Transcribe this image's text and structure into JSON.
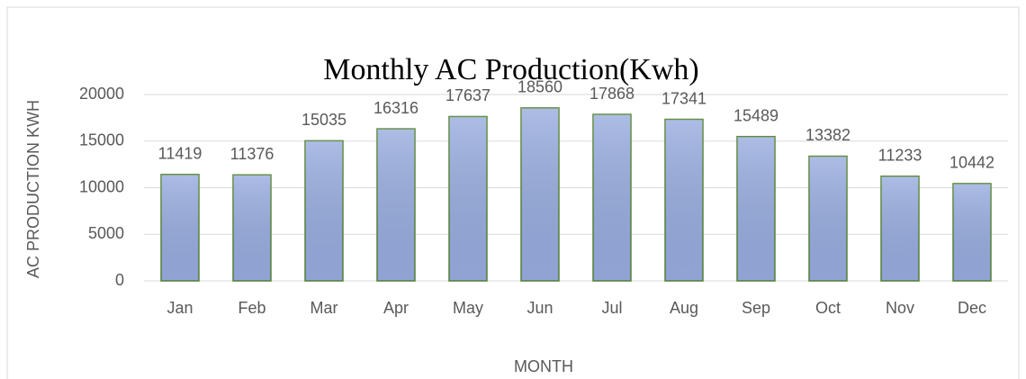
{
  "chart_data": {
    "type": "bar",
    "title": "Monthly AC Production(Kwh)",
    "x_label": "MONTH",
    "y_label": "AC PRODUCTION  KWH",
    "categories": [
      "Jan",
      "Feb",
      "Mar",
      "Apr",
      "May",
      "Jun",
      "Jul",
      "Aug",
      "Sep",
      "Oct",
      "Nov",
      "Dec"
    ],
    "values": [
      11419,
      11376,
      15035,
      16316,
      17637,
      18560,
      17868,
      17341,
      15489,
      13382,
      11233,
      10442
    ],
    "color": "#98acdf",
    "edge_color": "#548235",
    "ylim": [
      0,
      20000
    ],
    "yticks": [
      0,
      5000,
      10000,
      15000,
      20000
    ],
    "grid": true
  }
}
